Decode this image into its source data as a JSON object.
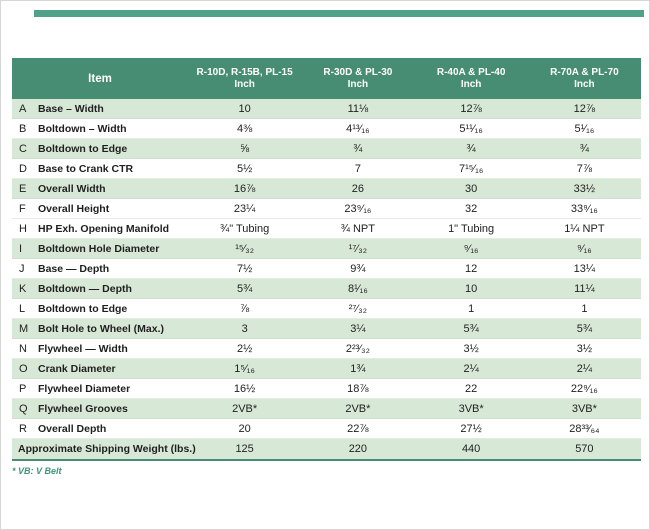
{
  "page": {
    "footnote": "* VB: V Belt"
  },
  "colors": {
    "header_bg": "#478d74",
    "row_shaded": "#d8e8d7",
    "accent_bar": "#4fa187",
    "footnote_text": "#3e9678"
  },
  "table": {
    "item_header": "Item",
    "columns": [
      {
        "model": "R-10D, R-15B, PL-15",
        "unit": "Inch"
      },
      {
        "model": "R-30D & PL-30",
        "unit": "Inch"
      },
      {
        "model": "R-40A & PL-40",
        "unit": "Inch"
      },
      {
        "model": "R-70A & PL-70",
        "unit": "Inch"
      }
    ],
    "rows": [
      {
        "letter": "A",
        "item": "Base – Width",
        "shaded": true,
        "values": [
          "10",
          "11⅛",
          "12⅞",
          "12⅞"
        ]
      },
      {
        "letter": "B",
        "item": "Boltdown – Width",
        "shaded": false,
        "values": [
          "4⅜",
          "4¹³⁄₁₆",
          "5¹¹⁄₁₆",
          "5¹⁄₁₆"
        ]
      },
      {
        "letter": "C",
        "item": "Boltdown to Edge",
        "shaded": true,
        "values": [
          "⅝",
          "¾",
          "¾",
          "¾"
        ]
      },
      {
        "letter": "D",
        "item": "Base to Crank CTR",
        "shaded": false,
        "values": [
          "5½",
          "7",
          "7¹⁵⁄₁₆",
          "7⅞"
        ]
      },
      {
        "letter": "E",
        "item": "Overall Width",
        "shaded": true,
        "values": [
          "16⅞",
          "26",
          "30",
          "33½"
        ]
      },
      {
        "letter": "F",
        "item": "Overall Height",
        "shaded": false,
        "values": [
          "23¼",
          "23⁹⁄₁₆",
          "32",
          "33⁹⁄₁₆"
        ]
      },
      {
        "letter": "H",
        "item": "HP Exh. Opening Manifold",
        "shaded": false,
        "values": [
          "¾\" Tubing",
          "¾ NPT",
          "1\" Tubing",
          "1¼ NPT"
        ]
      },
      {
        "letter": "I",
        "item": "Boltdown Hole Diameter",
        "shaded": true,
        "values": [
          "¹⁵⁄₃₂",
          "¹⁷⁄₃₂",
          "⁹⁄₁₆",
          "⁹⁄₁₆"
        ]
      },
      {
        "letter": "J",
        "item": "Base — Depth",
        "shaded": false,
        "values": [
          "7½",
          "9¾",
          "12",
          "13¼"
        ]
      },
      {
        "letter": "K",
        "item": "Boltdown — Depth",
        "shaded": true,
        "values": [
          "5¾",
          "8¹⁄₁₆",
          "10",
          "11¼"
        ]
      },
      {
        "letter": "L",
        "item": "Boltdown to Edge",
        "shaded": false,
        "values": [
          "⅞",
          "²⁷⁄₃₂",
          "1",
          "1"
        ]
      },
      {
        "letter": "M",
        "item": "Bolt Hole to Wheel (Max.)",
        "shaded": true,
        "values": [
          "3",
          "3¼",
          "5¾",
          "5¾"
        ]
      },
      {
        "letter": "N",
        "item": "Flywheel — Width",
        "shaded": false,
        "values": [
          "2½",
          "2²³⁄₃₂",
          "3½",
          "3½"
        ]
      },
      {
        "letter": "O",
        "item": "Crank Diameter",
        "shaded": true,
        "values": [
          "1⁵⁄₁₆",
          "1¾",
          "2¼",
          "2¼"
        ]
      },
      {
        "letter": "P",
        "item": "Flywheel Diameter",
        "shaded": false,
        "values": [
          "16½",
          "18⅞",
          "22",
          "22⁹⁄₁₆"
        ]
      },
      {
        "letter": "Q",
        "item": "Flywheel Grooves",
        "shaded": true,
        "values": [
          "2VB*",
          "2VB*",
          "3VB*",
          "3VB*"
        ]
      },
      {
        "letter": "R",
        "item": "Overall Depth",
        "shaded": false,
        "values": [
          "20",
          "22⅞",
          "27½",
          "28³³⁄₆₄"
        ]
      }
    ],
    "summary_row": {
      "item": "Approximate Shipping Weight (lbs.)",
      "shaded": true,
      "values": [
        "125",
        "220",
        "440",
        "570"
      ]
    }
  }
}
